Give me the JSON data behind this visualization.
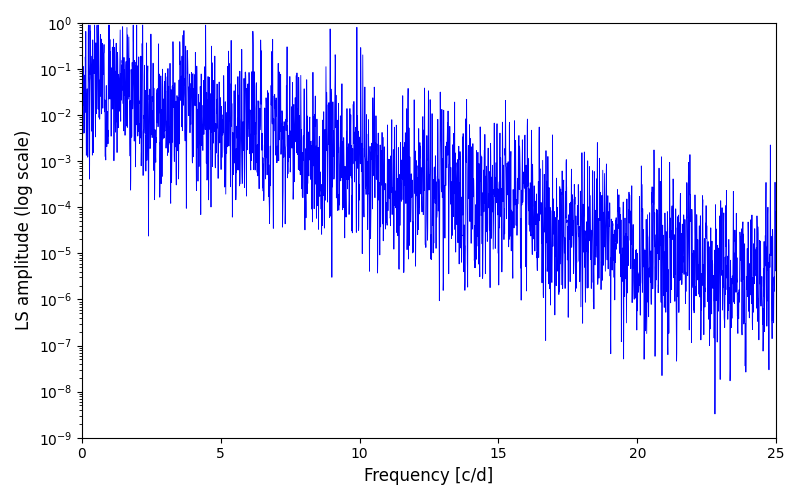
{
  "title": "",
  "xlabel": "Frequency [c/d]",
  "ylabel": "LS amplitude (log scale)",
  "line_color": "#0000ff",
  "xlim": [
    0,
    25
  ],
  "ylim_log_min": -9,
  "ylim_log_max": 0,
  "freq_min": 0.001,
  "freq_max": 25.0,
  "n_points": 4000,
  "seed": 7,
  "background_color": "#ffffff",
  "figsize": [
    8.0,
    5.0
  ],
  "dpi": 100,
  "linewidth": 0.6
}
